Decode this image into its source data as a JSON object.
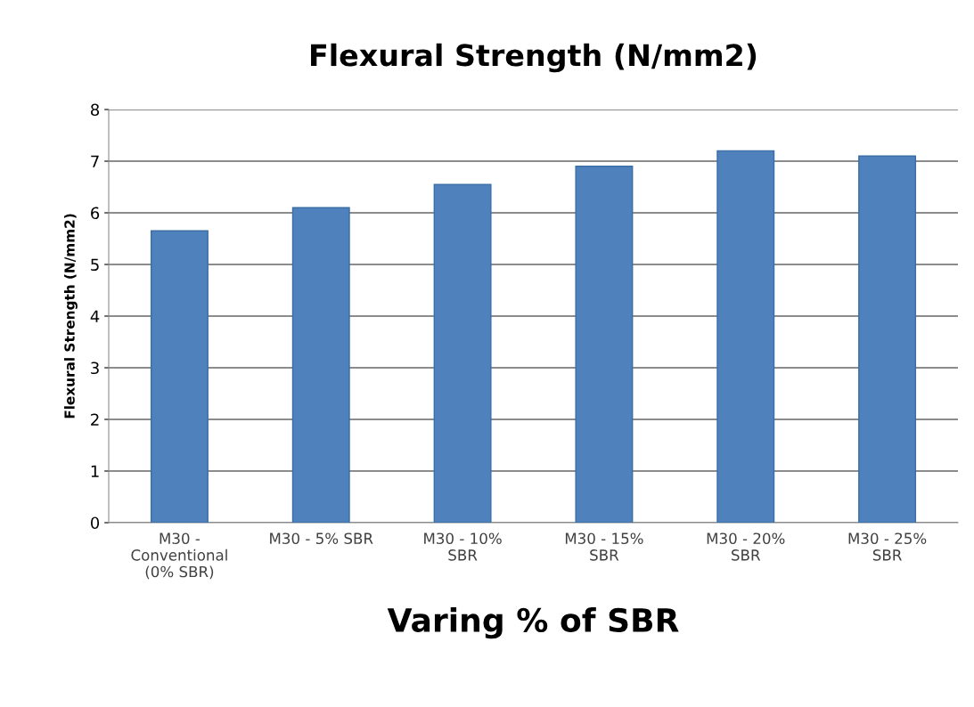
{
  "chart_data": {
    "type": "bar",
    "title": "Flexural Strength (N/mm2)",
    "xlabel": "Varing % of SBR",
    "ylabel": "Flexural Strength (N/mm2)",
    "categories": [
      "M30 -\nConventional\n(0% SBR)",
      "M30 - 5% SBR",
      "M30 - 10%\nSBR",
      "M30 - 15%\nSBR",
      "M30 - 20%\nSBR",
      "M30 - 25%\nSBR"
    ],
    "values": [
      5.65,
      6.1,
      6.55,
      6.9,
      7.2,
      7.1
    ],
    "color": "#4f81bd",
    "ylim": [
      0,
      8
    ],
    "yticks": [
      0,
      1,
      2,
      3,
      4,
      5,
      6,
      7,
      8
    ],
    "grid": "y"
  }
}
